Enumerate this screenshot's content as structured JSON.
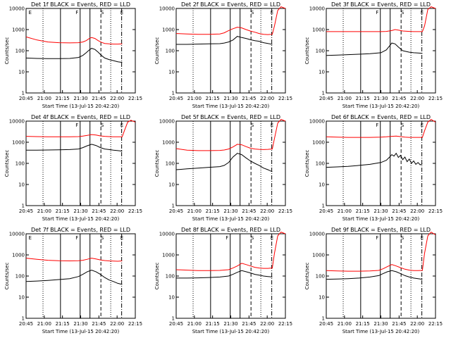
{
  "figure": {
    "xlabel": "Start Time (13-Jul-15 20:42:20)",
    "ylabel": "Counts/sec",
    "colors": {
      "events": "#000000",
      "lld": "#ff0000",
      "axes": "#000000"
    }
  },
  "chart_data": [
    {
      "type": "line",
      "title": "Det 1f BLACK = Events, RED = LLD",
      "xlabel": "Start Time (13-Jul-15 20:42:20)",
      "ylabel": "Counts/sec",
      "x_ticks": [
        "20:45",
        "21:00",
        "21:15",
        "21:30",
        "21:45",
        "22:00",
        "22:15"
      ],
      "y_ticks": [
        "1",
        "10",
        "100",
        "1000",
        "10000"
      ],
      "ylim": [
        1,
        10000
      ],
      "y_scale": "log",
      "markers": [
        "E",
        "F",
        "S",
        "E"
      ],
      "series": [
        {
          "x": [
            0,
            10,
            20,
            30,
            40,
            48,
            52,
            55,
            58,
            60,
            63,
            66,
            69,
            72,
            76,
            80,
            84,
            88
          ],
          "y": [
            450,
            320,
            260,
            240,
            235,
            240,
            260,
            300,
            380,
            420,
            380,
            300,
            250,
            220,
            210,
            205,
            205,
            210
          ]
        },
        {
          "x": [
            0,
            10,
            20,
            30,
            40,
            48,
            52,
            55,
            58,
            60,
            63,
            66,
            69,
            72,
            76,
            80,
            84,
            88
          ],
          "y": [
            45,
            43,
            42,
            42,
            43,
            48,
            60,
            80,
            110,
            130,
            115,
            85,
            60,
            45,
            38,
            34,
            30,
            28
          ]
        }
      ]
    },
    {
      "type": "line",
      "title": "Det 2f BLACK = Events, RED = LLD",
      "xlabel": "Start Time (13-Jul-15 20:42:20)",
      "ylabel": "Counts/sec",
      "x_ticks": [
        "20:45",
        "21:00",
        "21:15",
        "21:30",
        "21:45",
        "22:00",
        "22:15"
      ],
      "y_ticks": [
        "1",
        "10",
        "100",
        "1000",
        "10000"
      ],
      "ylim": [
        1,
        10000
      ],
      "y_scale": "log",
      "markers": [
        "S",
        "E"
      ],
      "series": [
        {
          "x": [
            0,
            10,
            20,
            30,
            40,
            44,
            48,
            52,
            56,
            60,
            64,
            68,
            72,
            76,
            80,
            84,
            88,
            90,
            93,
            96,
            100
          ],
          "y": [
            650,
            620,
            600,
            600,
            620,
            700,
            900,
            1100,
            1300,
            1200,
            1000,
            850,
            750,
            650,
            600,
            580,
            600,
            1500,
            8000,
            12000,
            10000
          ]
        },
        {
          "x": [
            0,
            10,
            20,
            30,
            40,
            44,
            48,
            52,
            56,
            60,
            64,
            68,
            72,
            76,
            80,
            84,
            88
          ],
          "y": [
            200,
            200,
            205,
            210,
            215,
            230,
            260,
            320,
            480,
            420,
            380,
            330,
            300,
            280,
            240,
            220,
            200
          ]
        }
      ]
    },
    {
      "type": "line",
      "title": "Det 3f BLACK = Events, RED = LLD",
      "xlabel": "Start Time (13-Jul-15 20:42:20)",
      "ylabel": "Counts/sec",
      "x_ticks": [
        "20:45",
        "21:00",
        "21:15",
        "21:30",
        "21:45",
        "22:00",
        "22:15"
      ],
      "y_ticks": [
        "1",
        "10",
        "100",
        "1000",
        "10000"
      ],
      "ylim": [
        1,
        10000
      ],
      "y_scale": "log",
      "markers": [
        "F",
        "S",
        "E"
      ],
      "series": [
        {
          "x": [
            0,
            10,
            20,
            30,
            40,
            50,
            55,
            60,
            63,
            66,
            70,
            76,
            80,
            84,
            88,
            90,
            93,
            96,
            100
          ],
          "y": [
            800,
            800,
            800,
            800,
            800,
            800,
            820,
            900,
            1000,
            950,
            860,
            820,
            800,
            800,
            800,
            1500,
            9000,
            12000,
            10000
          ]
        },
        {
          "x": [
            0,
            10,
            20,
            30,
            40,
            50,
            55,
            58,
            60,
            63,
            66,
            70,
            76,
            80,
            84,
            88
          ],
          "y": [
            60,
            62,
            65,
            68,
            72,
            80,
            110,
            170,
            230,
            210,
            150,
            100,
            85,
            80,
            78,
            75
          ]
        }
      ]
    },
    {
      "type": "line",
      "title": "Det 4f BLACK = Events, RED = LLD",
      "xlabel": "Start Time (13-Jul-15 20:42:20)",
      "ylabel": "Counts/sec",
      "x_ticks": [
        "20:45",
        "21:00",
        "21:15",
        "21:30",
        "21:45",
        "22:00",
        "22:15"
      ],
      "y_ticks": [
        "1",
        "10",
        "100",
        "1000",
        "10000"
      ],
      "ylim": [
        1,
        10000
      ],
      "y_scale": "log",
      "markers": [
        "F",
        "S",
        "E"
      ],
      "series": [
        {
          "x": [
            0,
            10,
            20,
            30,
            40,
            48,
            52,
            56,
            60,
            64,
            68,
            72,
            76,
            80,
            84,
            88,
            90,
            93,
            96,
            100
          ],
          "y": [
            1900,
            1850,
            1800,
            1800,
            1800,
            1850,
            1950,
            2100,
            2300,
            2200,
            2000,
            1900,
            1850,
            1800,
            1800,
            1800,
            3500,
            9000,
            11000,
            9000
          ]
        },
        {
          "x": [
            0,
            10,
            20,
            30,
            40,
            48,
            52,
            56,
            60,
            64,
            68,
            72,
            76,
            80,
            84,
            88
          ],
          "y": [
            420,
            420,
            430,
            440,
            450,
            480,
            560,
            680,
            800,
            700,
            560,
            480,
            450,
            420,
            400,
            380
          ]
        }
      ]
    },
    {
      "type": "line",
      "title": "Det 5f BLACK = Events, RED = LLD",
      "xlabel": "Start Time (13-Jul-15 20:42:20)",
      "ylabel": "Counts/sec",
      "x_ticks": [
        "20:45",
        "21:00",
        "21:15",
        "21:30",
        "21:45",
        "22:00",
        "22:15"
      ],
      "y_ticks": [
        "1",
        "10",
        "100",
        "1000",
        "10000"
      ],
      "ylim": [
        1,
        10000
      ],
      "y_scale": "log",
      "markers": [
        "S",
        "E"
      ],
      "series": [
        {
          "x": [
            0,
            10,
            20,
            30,
            40,
            44,
            48,
            52,
            56,
            60,
            64,
            68,
            72,
            76,
            80,
            84,
            88,
            90,
            93,
            96,
            100
          ],
          "y": [
            500,
            420,
            400,
            400,
            410,
            430,
            480,
            600,
            800,
            760,
            620,
            520,
            480,
            460,
            450,
            460,
            480,
            1500,
            8000,
            12000,
            10000
          ]
        },
        {
          "x": [
            0,
            10,
            20,
            30,
            40,
            44,
            48,
            52,
            56,
            60,
            64,
            68,
            72,
            76,
            80,
            84,
            88
          ],
          "y": [
            50,
            55,
            60,
            65,
            70,
            80,
            110,
            200,
            300,
            260,
            180,
            130,
            100,
            80,
            60,
            50,
            40
          ]
        }
      ]
    },
    {
      "type": "line",
      "title": "Det 6f BLACK = Events, RED = LLD",
      "xlabel": "Start Time (13-Jul-15 20:42:20)",
      "ylabel": "Counts/sec",
      "x_ticks": [
        "20:45",
        "21:00",
        "21:15",
        "21:30",
        "21:45",
        "22:00",
        "22:15"
      ],
      "y_ticks": [
        "1",
        "10",
        "100",
        "1000",
        "10000"
      ],
      "ylim": [
        1,
        10000
      ],
      "y_scale": "log",
      "markers": [
        "F",
        "S",
        "E"
      ],
      "series": [
        {
          "x": [
            0,
            10,
            20,
            30,
            40,
            50,
            55,
            60,
            64,
            68,
            72,
            76,
            80,
            84,
            88,
            90,
            93,
            96,
            100
          ],
          "y": [
            1800,
            1750,
            1700,
            1700,
            1700,
            1750,
            1800,
            1900,
            1950,
            1850,
            1750,
            1700,
            1700,
            1700,
            1700,
            3500,
            9000,
            12000,
            9000
          ]
        },
        {
          "x": [
            0,
            10,
            20,
            30,
            40,
            50,
            55,
            58,
            60,
            62,
            64,
            66,
            68,
            70,
            72,
            74,
            76,
            78,
            80,
            82,
            84,
            86,
            88
          ],
          "y": [
            65,
            68,
            72,
            80,
            90,
            110,
            140,
            200,
            260,
            220,
            300,
            190,
            240,
            150,
            200,
            120,
            160,
            100,
            130,
            90,
            110,
            85,
            95
          ]
        }
      ]
    },
    {
      "type": "line",
      "title": "Det 7f BLACK = Events, RED = LLD",
      "xlabel": "Start Time (13-Jul-15 20:42:20)",
      "ylabel": "Counts/sec",
      "x_ticks": [
        "20:45",
        "21:00",
        "21:15",
        "21:30",
        "21:45",
        "22:00",
        "22:15"
      ],
      "y_ticks": [
        "1",
        "10",
        "100",
        "1000",
        "10000"
      ],
      "ylim": [
        1,
        10000
      ],
      "y_scale": "log",
      "markers": [
        "E",
        "F",
        "S",
        "E"
      ],
      "series": [
        {
          "x": [
            0,
            10,
            20,
            30,
            40,
            48,
            52,
            56,
            60,
            64,
            68,
            72,
            76,
            80,
            84,
            88
          ],
          "y": [
            700,
            620,
            560,
            530,
            520,
            530,
            560,
            620,
            700,
            640,
            580,
            540,
            520,
            510,
            500,
            520
          ]
        },
        {
          "x": [
            0,
            10,
            20,
            30,
            40,
            48,
            52,
            56,
            60,
            64,
            68,
            72,
            76,
            80,
            84,
            88
          ],
          "y": [
            55,
            58,
            62,
            68,
            75,
            95,
            120,
            160,
            190,
            160,
            120,
            85,
            65,
            55,
            45,
            40
          ]
        }
      ]
    },
    {
      "type": "line",
      "title": "Det 8f BLACK = Events, RED = LLD",
      "xlabel": "Start Time (13-Jul-15 20:42:20)",
      "ylabel": "Counts/sec",
      "x_ticks": [
        "20:45",
        "21:00",
        "21:15",
        "21:30",
        "21:45",
        "22:00",
        "22:15"
      ],
      "y_ticks": [
        "1",
        "10",
        "100",
        "1000",
        "10000"
      ],
      "ylim": [
        1,
        10000
      ],
      "y_scale": "log",
      "markers": [
        "F",
        "S",
        "E"
      ],
      "series": [
        {
          "x": [
            0,
            10,
            20,
            30,
            40,
            48,
            52,
            56,
            60,
            64,
            68,
            72,
            76,
            80,
            84,
            88,
            90,
            93,
            96,
            100
          ],
          "y": [
            200,
            190,
            180,
            180,
            185,
            200,
            240,
            300,
            400,
            350,
            300,
            260,
            240,
            230,
            230,
            240,
            1200,
            8000,
            12000,
            10000
          ]
        },
        {
          "x": [
            0,
            10,
            20,
            30,
            40,
            48,
            52,
            56,
            60,
            64,
            68,
            72,
            76,
            80,
            84,
            88
          ],
          "y": [
            80,
            80,
            82,
            85,
            90,
            100,
            120,
            150,
            180,
            160,
            140,
            120,
            110,
            100,
            95,
            90
          ]
        }
      ]
    },
    {
      "type": "line",
      "title": "Det 9f BLACK = Events, RED = LLD",
      "xlabel": "Start Time (13-Jul-15 20:42:20)",
      "ylabel": "Counts/sec",
      "x_ticks": [
        "20:45",
        "21:00",
        "21:15",
        "21:30",
        "21:45",
        "22:00",
        "22:15"
      ],
      "y_ticks": [
        "1",
        "10",
        "100",
        "1000",
        "10000"
      ],
      "ylim": [
        1,
        10000
      ],
      "y_scale": "log",
      "markers": [
        "F",
        "S",
        "E"
      ],
      "series": [
        {
          "x": [
            0,
            10,
            20,
            30,
            40,
            48,
            52,
            56,
            60,
            64,
            68,
            72,
            76,
            80,
            84,
            88,
            90,
            93,
            96,
            100
          ],
          "y": [
            180,
            175,
            170,
            170,
            175,
            185,
            220,
            280,
            350,
            300,
            250,
            210,
            190,
            180,
            180,
            185,
            1200,
            8000,
            12000,
            9000
          ]
        },
        {
          "x": [
            0,
            10,
            20,
            30,
            40,
            48,
            52,
            56,
            60,
            64,
            68,
            72,
            76,
            80,
            84,
            88
          ],
          "y": [
            70,
            72,
            75,
            80,
            90,
            105,
            130,
            160,
            180,
            160,
            130,
            105,
            90,
            80,
            75,
            70
          ]
        }
      ]
    }
  ]
}
